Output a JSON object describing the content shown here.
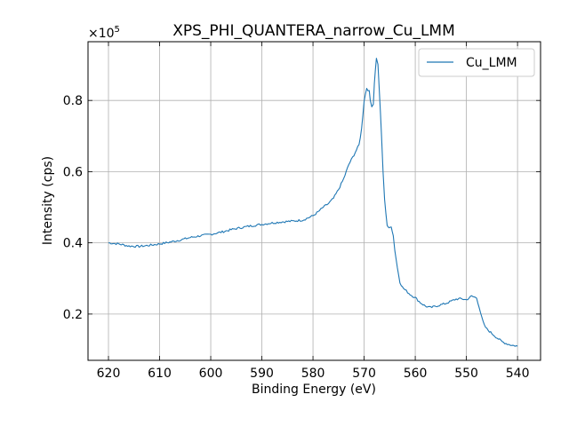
{
  "chart_data": {
    "type": "line",
    "title": "XPS_PHI_QUANTERA_narrow_Cu_LMM",
    "xlabel": "Binding Energy (eV)",
    "ylabel": "Intensity (cps)",
    "y_multiplier_label": "×10",
    "y_multiplier_exponent": "5",
    "xlim": [
      624,
      535.5
    ],
    "ylim": [
      0.07,
      0.965
    ],
    "x_reversed": true,
    "grid": true,
    "legend_position": "top-right",
    "xticks": [
      620,
      610,
      600,
      590,
      580,
      570,
      560,
      550,
      540
    ],
    "xtick_labels": [
      "620",
      "610",
      "600",
      "590",
      "580",
      "570",
      "560",
      "550",
      "540"
    ],
    "yticks": [
      0.2,
      0.4,
      0.6,
      0.8
    ],
    "ytick_labels": [
      "0.2",
      "0.4",
      "0.6",
      "0.8"
    ],
    "series": [
      {
        "name": "Cu_LMM",
        "color": "#1f77b4",
        "x": [
          620,
          618,
          616,
          614,
          612,
          610,
          608,
          606,
          604,
          602,
          600,
          598,
          596,
          594,
          592,
          590,
          588,
          586,
          584,
          582,
          580,
          579,
          578,
          577,
          576,
          575,
          574,
          573,
          572,
          571,
          570.5,
          570,
          569.5,
          569,
          568.8,
          568.5,
          568.2,
          568,
          567.6,
          567.3,
          567,
          566.6,
          566.3,
          566,
          565.5,
          565.1,
          564.7,
          564.3,
          564,
          563.5,
          563,
          562.5,
          562,
          561,
          560,
          559,
          558,
          557,
          556,
          555,
          554,
          553,
          552,
          551,
          550,
          549,
          548.5,
          548,
          547.5,
          547,
          546.5,
          546,
          545,
          544,
          543,
          542,
          541,
          540
        ],
        "y": [
          0.4,
          0.397,
          0.391,
          0.39,
          0.393,
          0.397,
          0.402,
          0.408,
          0.415,
          0.42,
          0.424,
          0.43,
          0.437,
          0.443,
          0.448,
          0.452,
          0.456,
          0.459,
          0.461,
          0.464,
          0.476,
          0.487,
          0.5,
          0.51,
          0.525,
          0.55,
          0.58,
          0.62,
          0.647,
          0.675,
          0.72,
          0.8,
          0.835,
          0.825,
          0.8,
          0.785,
          0.79,
          0.85,
          0.92,
          0.9,
          0.82,
          0.7,
          0.6,
          0.52,
          0.45,
          0.44,
          0.447,
          0.42,
          0.38,
          0.33,
          0.29,
          0.275,
          0.268,
          0.255,
          0.246,
          0.232,
          0.222,
          0.218,
          0.222,
          0.226,
          0.23,
          0.236,
          0.242,
          0.243,
          0.24,
          0.25,
          0.248,
          0.245,
          0.22,
          0.19,
          0.168,
          0.158,
          0.145,
          0.133,
          0.122,
          0.116,
          0.112,
          0.11
        ]
      }
    ]
  }
}
